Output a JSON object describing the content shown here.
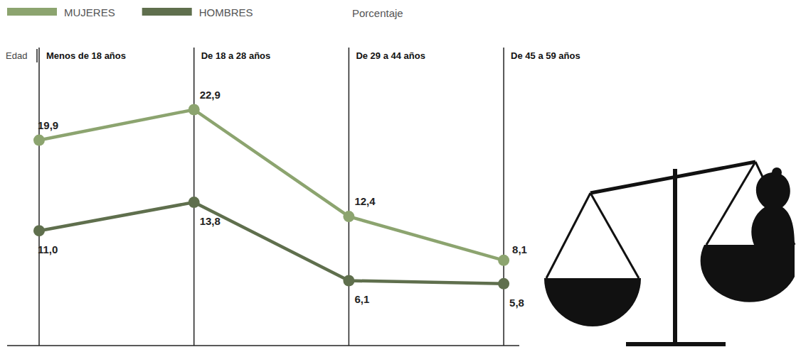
{
  "chart_data": {
    "type": "line",
    "x_label": "Edad",
    "y_label": "Porcentaje",
    "categories": [
      "Menos de 18 años",
      "De 18 a 28 años",
      "De 29 a 44 años",
      "De 45 a 59 años"
    ],
    "series": [
      {
        "name": "MUJERES",
        "color": "#8ca46f",
        "marker": "circle",
        "values": [
          19.9,
          22.9,
          12.4,
          8.1
        ],
        "value_labels": [
          "19,9",
          "22,9",
          "12,4",
          "8,1"
        ]
      },
      {
        "name": "HOMBRES",
        "color": "#5f6f4d",
        "marker": "circle",
        "values": [
          11.0,
          13.8,
          6.1,
          5.8
        ],
        "value_labels": [
          "11,0",
          "13,8",
          "6,1",
          "5,8"
        ]
      }
    ],
    "ylim": [
      0,
      29
    ],
    "yticks": [],
    "tick_labels": "x",
    "grid": true,
    "data_labels": true,
    "legend": "top-left"
  }
}
